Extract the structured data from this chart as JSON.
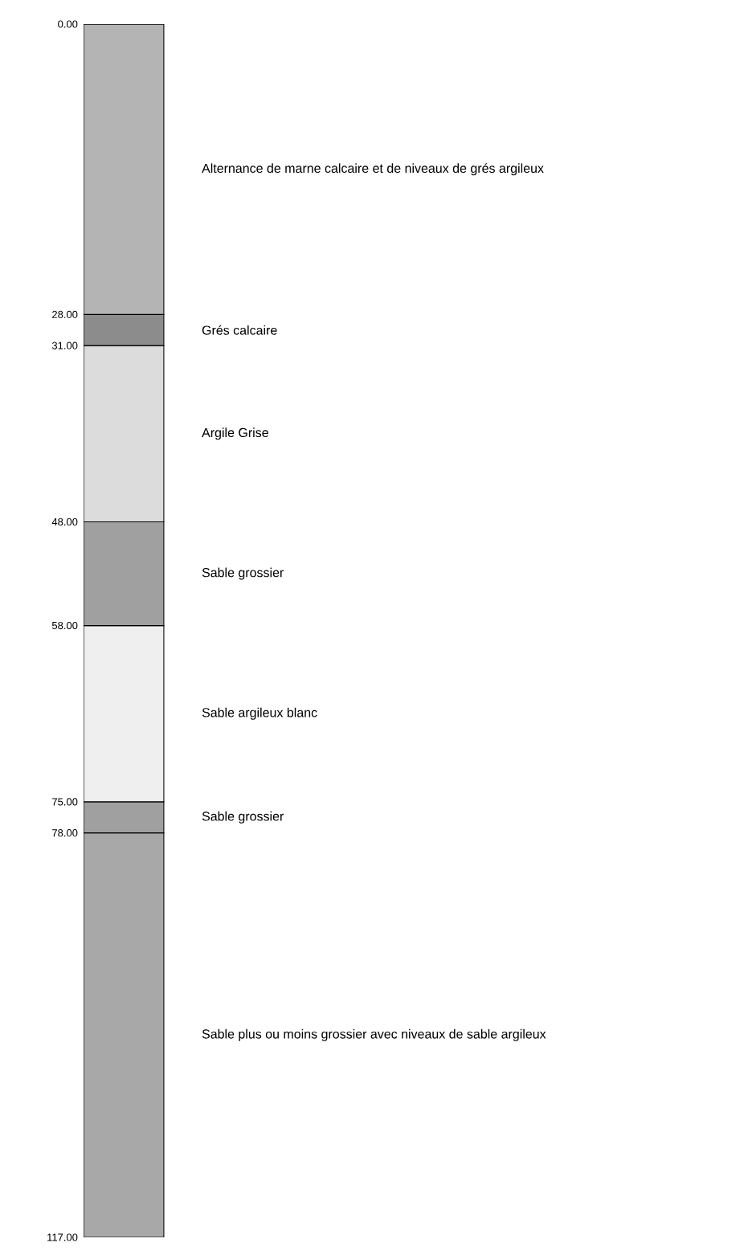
{
  "chart_data": {
    "type": "bar",
    "stacked": true,
    "categories": [
      null
    ],
    "series": [
      {
        "name": "Alternance de marne calcaire et de niveaux de grés argileux",
        "color": "#b4b4b4",
        "values": [
          28
        ]
      },
      {
        "name": "Grés calcaire",
        "color": "#8c8c8c",
        "values": [
          3
        ]
      },
      {
        "name": "Argile Grise",
        "color": "#dcdcdc",
        "values": [
          17
        ]
      },
      {
        "name": "Sable grossier",
        "color": "#a0a0a0",
        "values": [
          10
        ]
      },
      {
        "name": "Sable argileux blanc",
        "color": "#efefef",
        "values": [
          17
        ]
      },
      {
        "name": "Sable grossier",
        "color": "#a0a0a0",
        "values": [
          3
        ]
      },
      {
        "name": "Sable plus ou moins grossier avec niveaux de sable argileux",
        "color": "#a8a8a8",
        "values": [
          39
        ]
      }
    ],
    "ylim": [
      117,
      0
    ],
    "yticks": [
      {
        "value": 0,
        "label": "0.00"
      },
      {
        "value": 28,
        "label": "28.00"
      },
      {
        "value": 31,
        "label": "31.00"
      },
      {
        "value": 48,
        "label": "48.00"
      },
      {
        "value": 58,
        "label": "58.00"
      },
      {
        "value": 75,
        "label": "75.00"
      },
      {
        "value": 78,
        "label": "78.00"
      },
      {
        "value": 117,
        "label": "117.00"
      }
    ],
    "tick_labels": "y",
    "grid": false
  }
}
